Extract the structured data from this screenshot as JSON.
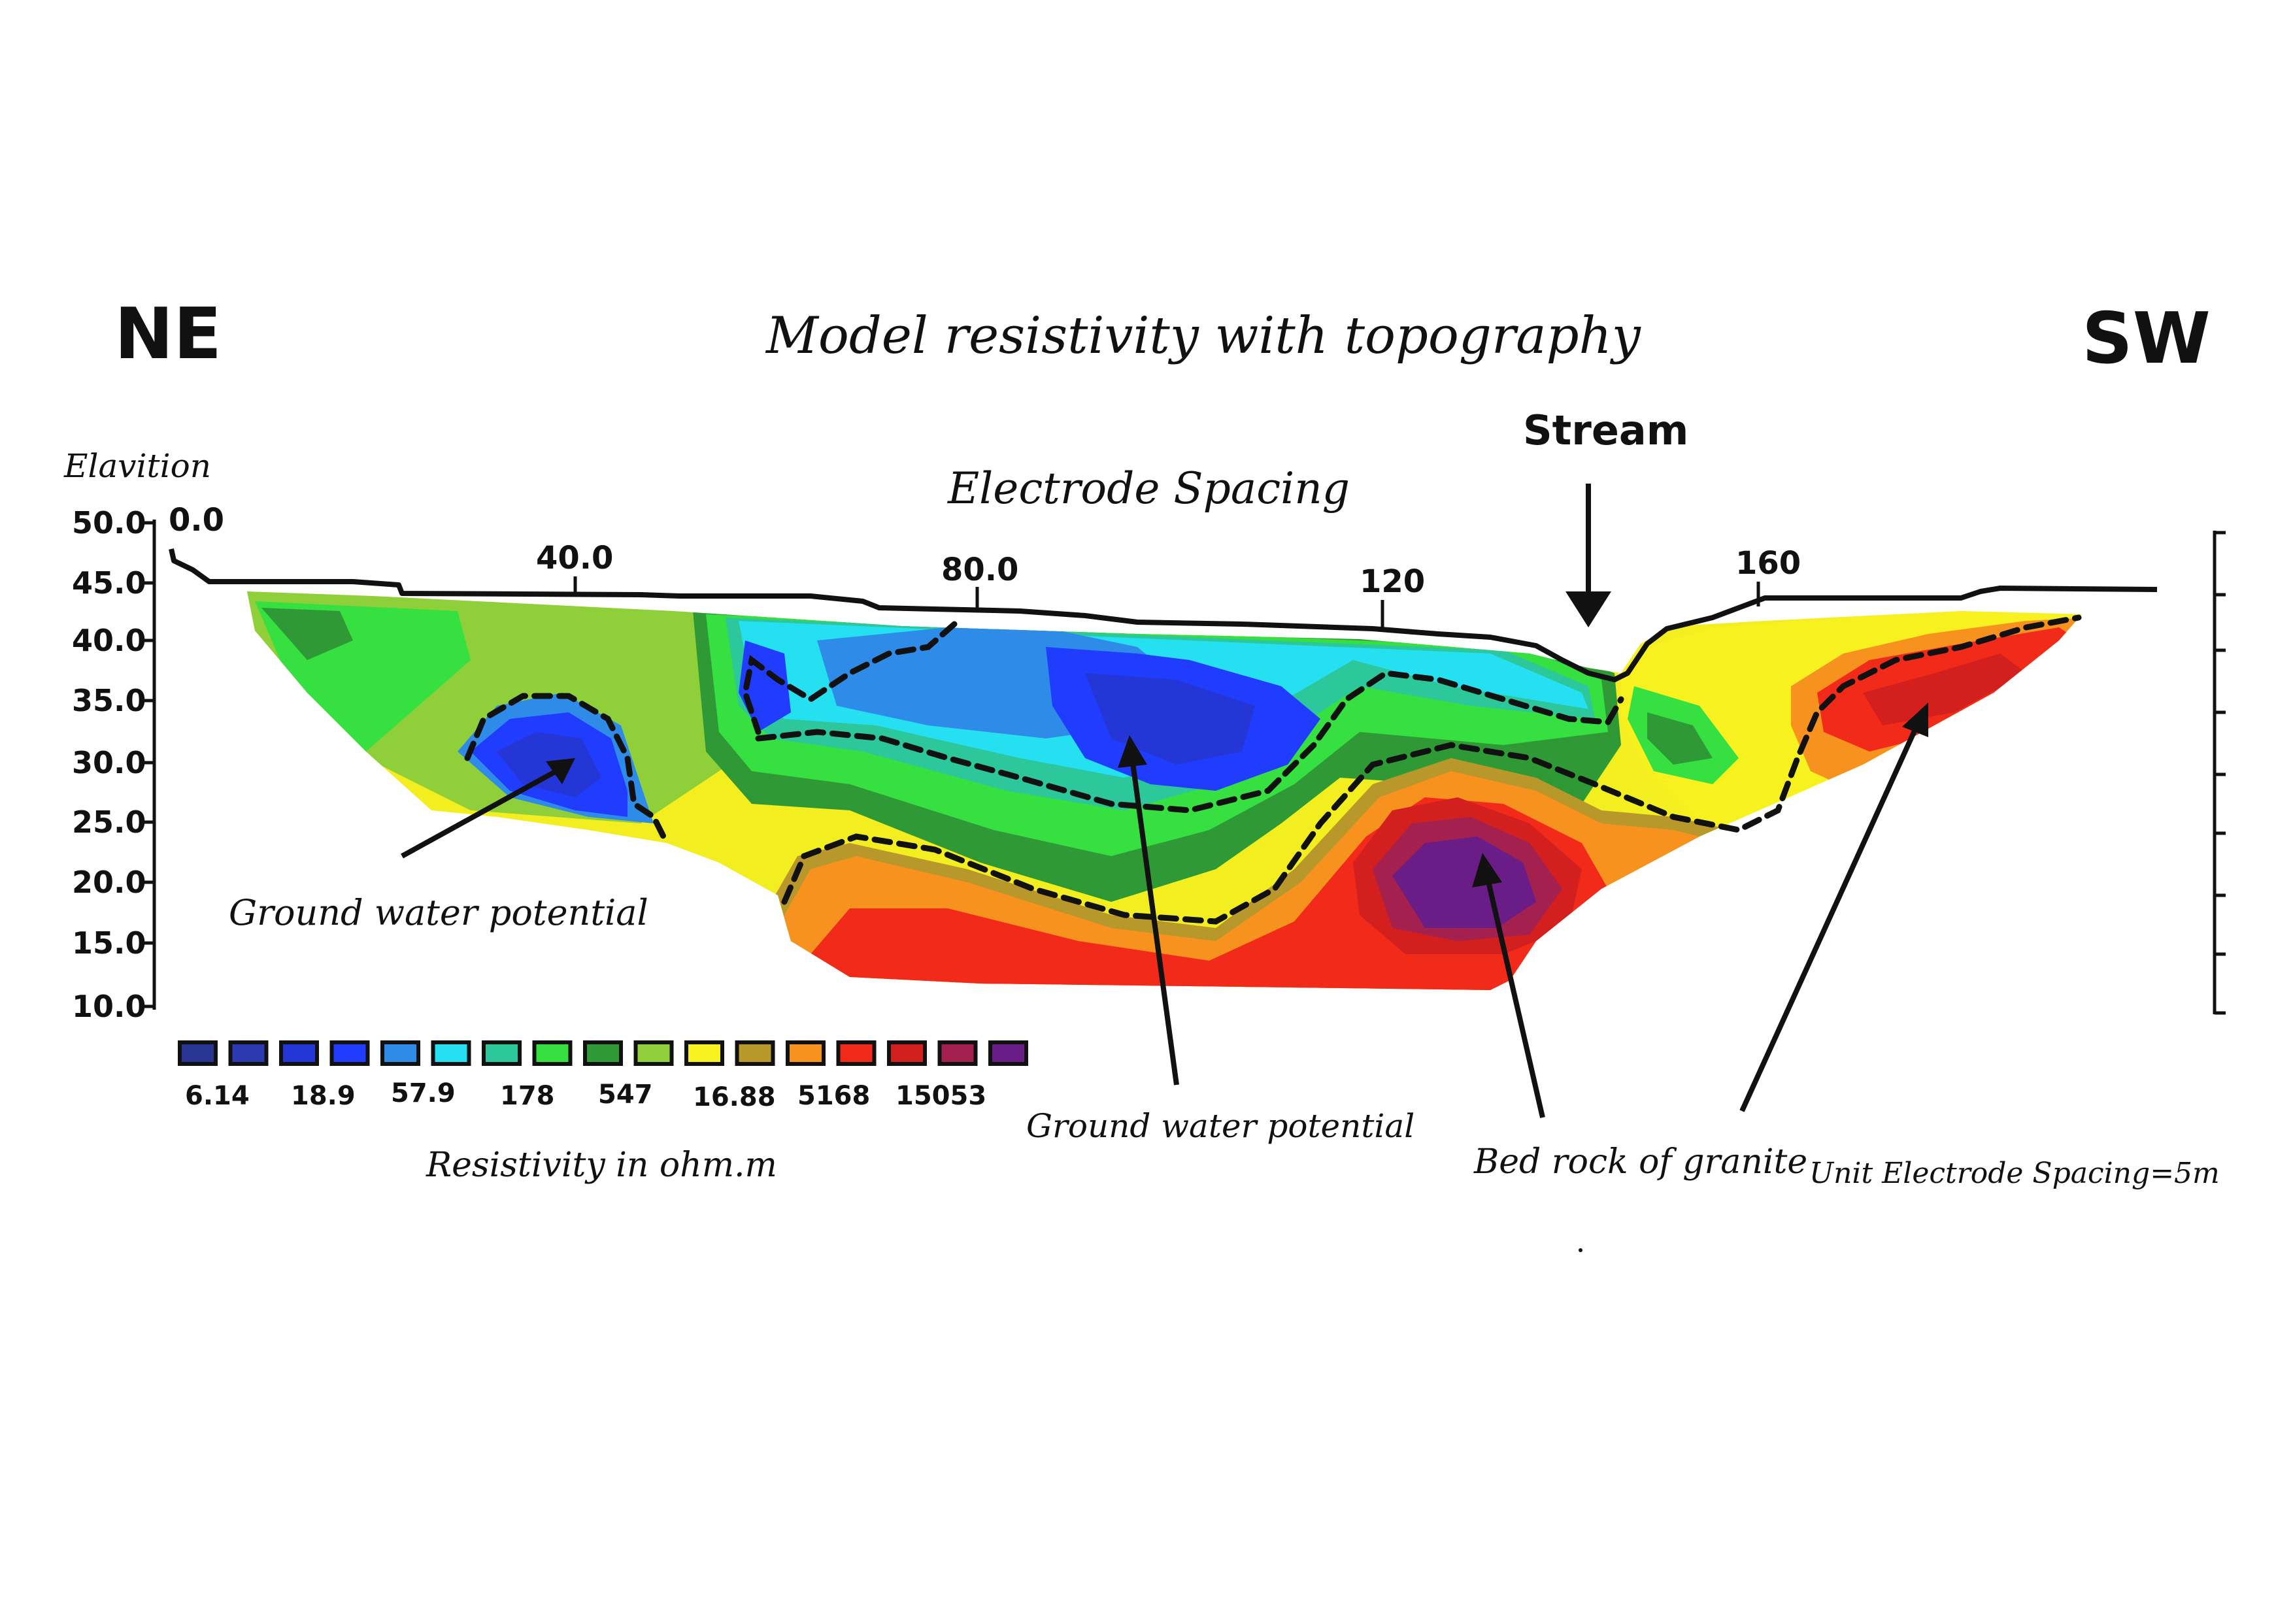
{
  "header": {
    "left_direction": "NE",
    "right_direction": "SW",
    "title": "Model resistivity with topography"
  },
  "axes": {
    "y_label": "Elavition",
    "y_ticks": [
      "50.0",
      "45.0",
      "40.0",
      "35.0",
      "30.0",
      "25.0",
      "20.0",
      "15.0",
      "10.0"
    ],
    "x_label": "Electrode Spacing",
    "x_ticks": [
      "0.0",
      "40.0",
      "80.0",
      "120",
      "160"
    ]
  },
  "annotations": {
    "stream": "Stream",
    "gw_left": "Ground water potential",
    "gw_center": "Ground water potential",
    "bedrock": "Bed rock of granite",
    "unit_spacing": "Unit Electrode Spacing=5m"
  },
  "legend": {
    "title": "Resistivity in ohm.m",
    "colors": [
      "#283593",
      "#2c39b0",
      "#2536d6",
      "#1f3cff",
      "#2f8be8",
      "#25e0f0",
      "#2cc79a",
      "#35e040",
      "#2f9a35",
      "#8fcf3a",
      "#f7f11f",
      "#b8982a",
      "#f7921e",
      "#f22a1a",
      "#d41f1f",
      "#a3204f",
      "#6a1d86"
    ],
    "labels": [
      "6.14",
      "18.9",
      "57.9",
      "178",
      "547",
      "16.88",
      "5168",
      "15053"
    ]
  }
}
